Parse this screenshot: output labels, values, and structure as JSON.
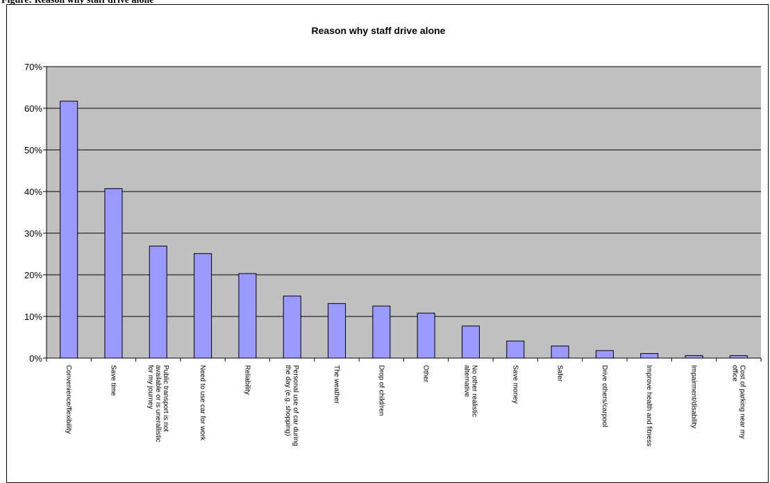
{
  "figure_caption": "Figure: Reason why staff drive alone",
  "chart_data": {
    "type": "bar",
    "title": "Reason why staff drive alone",
    "xlabel": "",
    "ylabel": "",
    "ylim": [
      0,
      70
    ],
    "y_ticks": [
      "0%",
      "10%",
      "20%",
      "30%",
      "40%",
      "50%",
      "60%",
      "70%"
    ],
    "y_tick_values": [
      0,
      10,
      20,
      30,
      40,
      50,
      60,
      70
    ],
    "value_unit": "%",
    "grid": true,
    "legend": "none",
    "categories": [
      [
        "Convenience/flexibility"
      ],
      [
        "Save time"
      ],
      [
        "Public transport is not",
        "available or is unerallistic",
        "for my journey"
      ],
      [
        "Need to use car for work"
      ],
      [
        "Reliability"
      ],
      [
        "Personal use of car during",
        "the day (e.g. shopping)"
      ],
      [
        "The weather"
      ],
      [
        "Drop of child/ren"
      ],
      [
        "Other"
      ],
      [
        "No other realistic",
        "alternative"
      ],
      [
        "Save money"
      ],
      [
        "Safer"
      ],
      [
        "Drive others/carpool"
      ],
      [
        "Improve health and fitness"
      ],
      [
        "Impairment/disability"
      ],
      [
        "Cost of parking near my",
        "office"
      ]
    ],
    "values": [
      61.7,
      40.7,
      26.9,
      25.1,
      20.3,
      14.9,
      13.1,
      12.5,
      10.8,
      7.7,
      4.1,
      2.9,
      1.8,
      1.1,
      0.6,
      0.6
    ],
    "colors": {
      "bar_fill": "#9999ff",
      "bar_stroke": "#000000",
      "plot_bg": "#c0c0c0",
      "grid": "#000000"
    }
  }
}
